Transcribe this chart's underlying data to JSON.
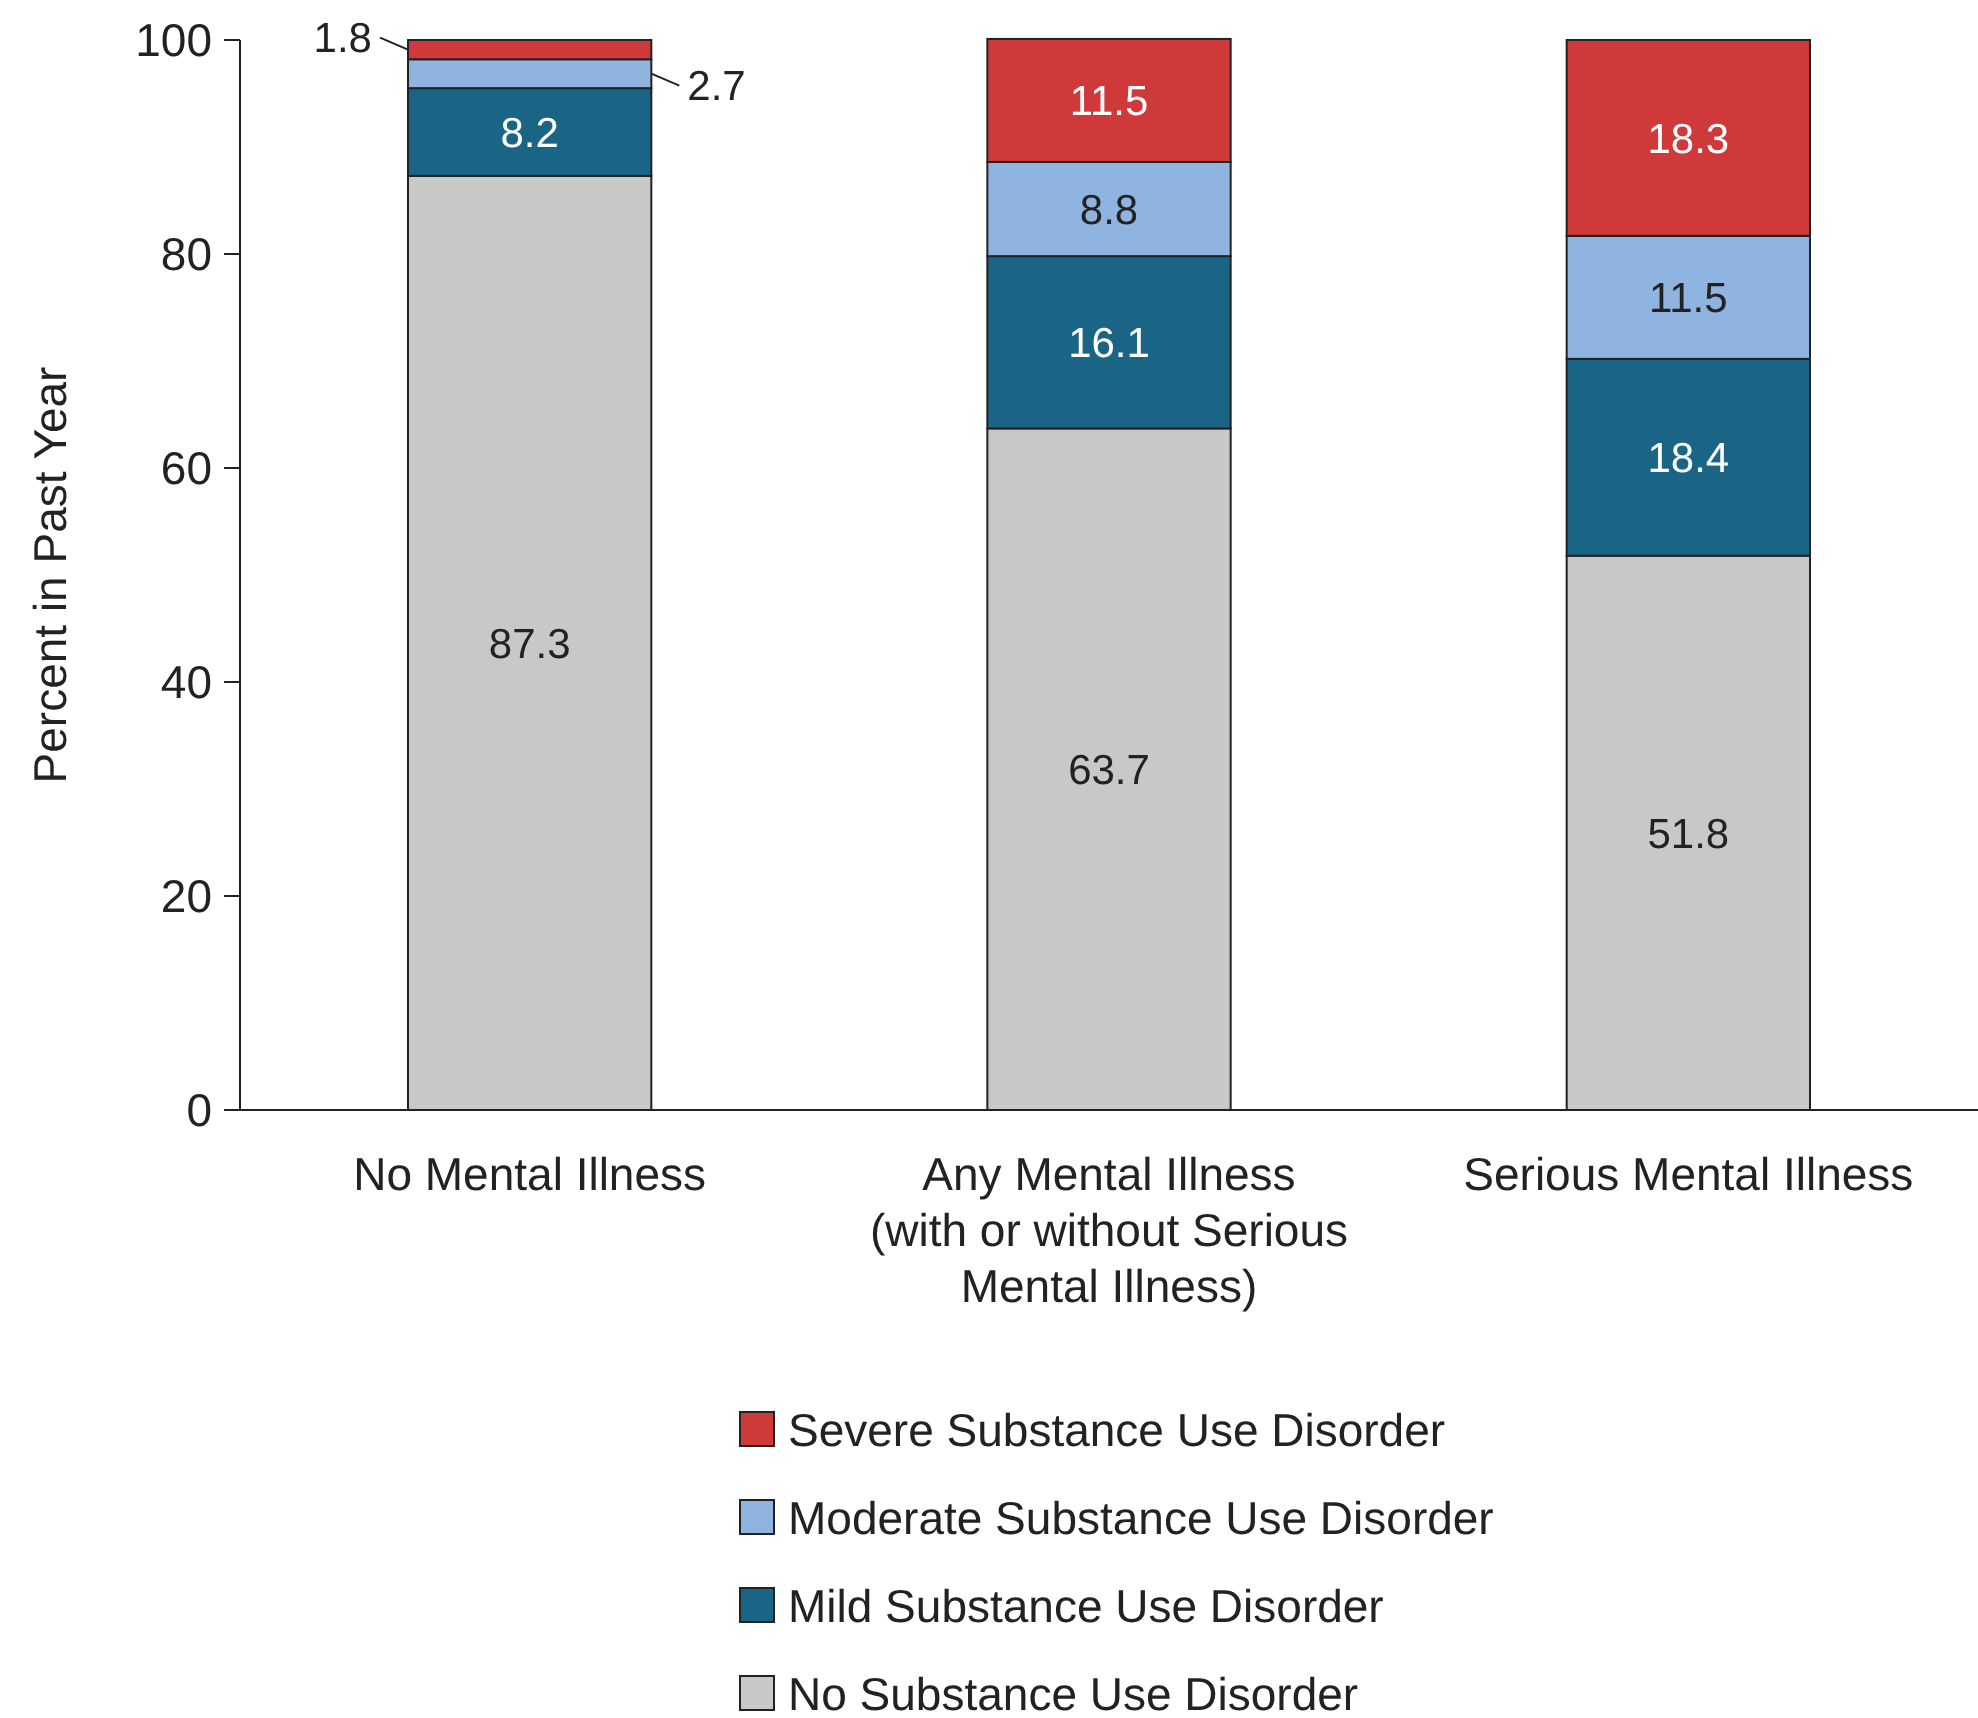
{
  "chart_data": {
    "type": "bar",
    "stacked": true,
    "ylabel": "Percent in Past Year",
    "categories": [
      "No Mental Illness",
      "Any Mental Illness\n(with or without Serious\nMental Illness)",
      "Serious Mental Illness"
    ],
    "series": [
      {
        "name": "No Substance Use Disorder",
        "color": "#c8c8c8",
        "values": [
          87.3,
          63.7,
          51.8
        ]
      },
      {
        "name": "Mild Substance Use Disorder",
        "color": "#1a6585",
        "values": [
          8.2,
          16.1,
          18.4
        ]
      },
      {
        "name": "Moderate Substance Use Disorder",
        "color": "#8fb4e0",
        "values": [
          2.7,
          8.8,
          11.5
        ]
      },
      {
        "name": "Severe Substance Use Disorder",
        "color": "#d0393a",
        "values": [
          1.8,
          11.5,
          18.3
        ]
      }
    ],
    "ylim": [
      0,
      100
    ],
    "yticks": [
      0,
      20,
      40,
      60,
      80,
      100
    ],
    "grid": false,
    "legend": "bottom",
    "data_labels": true
  }
}
